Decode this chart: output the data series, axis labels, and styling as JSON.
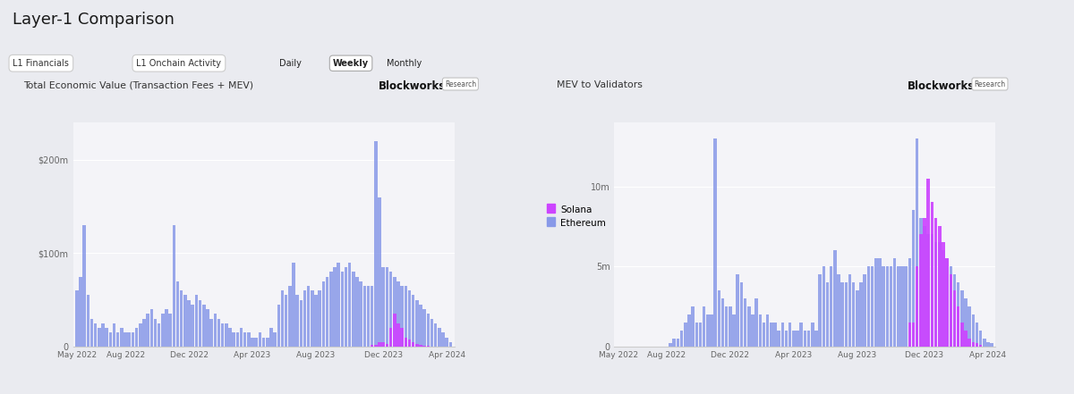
{
  "title": "Layer-1 Comparison",
  "subtitle_left": "L1 Financials",
  "subtitle_right": "L1 Onchain Activity",
  "active_tab": "Weekly",
  "chart1_title": "Total Economic Value (Transaction Fees + MEV)",
  "chart2_title": "MEV to Validators",
  "eth_color": "#8899e8",
  "sol_color": "#cc44ff",
  "bg_color": "#eaebf0",
  "panel_color": "#f4f4f8",
  "legend_solana": "Solana",
  "legend_ethereum": "Ethereum",
  "chart1_ytick_labels": [
    "0",
    "$100m",
    "$200m"
  ],
  "chart1_yticks": [
    0,
    100,
    200
  ],
  "chart1_ylim": 240,
  "chart2_ytick_labels": [
    "0",
    "5m",
    "10m"
  ],
  "chart2_yticks": [
    0,
    5,
    10
  ],
  "chart2_ylim": 14,
  "xtick_labels": [
    "May 2022",
    "Aug 2022",
    "Dec 2022",
    "Apr 2023",
    "Aug 2023",
    "Dec 2023",
    "Apr 2024"
  ],
  "xtick_positions": [
    0,
    13,
    30,
    47,
    64,
    82,
    99
  ],
  "eth_tev": [
    60,
    75,
    130,
    55,
    30,
    25,
    20,
    25,
    20,
    15,
    25,
    15,
    20,
    15,
    15,
    15,
    20,
    25,
    30,
    35,
    40,
    30,
    25,
    35,
    40,
    35,
    130,
    70,
    60,
    55,
    50,
    45,
    55,
    50,
    45,
    40,
    30,
    35,
    30,
    25,
    25,
    20,
    15,
    15,
    20,
    15,
    15,
    10,
    10,
    15,
    10,
    10,
    20,
    15,
    45,
    60,
    55,
    65,
    90,
    55,
    50,
    60,
    65,
    60,
    55,
    60,
    70,
    75,
    80,
    85,
    90,
    80,
    85,
    90,
    80,
    75,
    70,
    65,
    65,
    65,
    220,
    160,
    85,
    85,
    80,
    75,
    70,
    65,
    65,
    60,
    55,
    50,
    45,
    40,
    35,
    30,
    25,
    20,
    15,
    10,
    5
  ],
  "sol_tev": [
    0,
    0,
    0,
    0,
    0,
    0,
    0,
    0,
    0,
    0,
    0,
    0,
    0,
    0,
    0,
    0,
    0,
    0,
    0,
    0,
    0,
    0,
    0,
    0,
    0,
    0,
    0,
    0,
    0,
    0,
    0,
    0,
    0,
    0,
    0,
    0,
    0,
    0,
    0,
    0,
    0,
    0,
    0,
    0,
    0,
    0,
    0,
    0,
    0,
    0,
    0,
    0,
    0,
    0,
    0,
    0,
    0,
    0,
    0,
    0,
    0,
    0,
    0,
    0,
    0,
    0,
    0,
    0,
    0,
    0,
    0,
    0,
    0,
    0,
    0,
    0,
    0,
    0,
    0,
    2,
    2,
    5,
    5,
    3,
    20,
    35,
    25,
    20,
    10,
    8,
    5,
    3,
    2,
    1,
    1,
    0,
    0,
    0,
    0,
    0,
    0
  ],
  "eth_mev": [
    0,
    0,
    0,
    0,
    0,
    0,
    0,
    0,
    0,
    0,
    0,
    0,
    0,
    0,
    0.2,
    0.5,
    0.5,
    1.0,
    1.5,
    2.0,
    2.5,
    1.5,
    1.5,
    2.5,
    2.0,
    2.0,
    13,
    3.5,
    3.0,
    2.5,
    2.5,
    2.0,
    4.5,
    4.0,
    3.0,
    2.5,
    2.0,
    3.0,
    2.0,
    1.5,
    2.0,
    1.5,
    1.5,
    1.0,
    1.5,
    1.0,
    1.5,
    1.0,
    1.0,
    1.5,
    1.0,
    1.0,
    1.5,
    1.0,
    4.5,
    5.0,
    4.0,
    5.0,
    6.0,
    4.5,
    4.0,
    4.0,
    4.5,
    4.0,
    3.5,
    4.0,
    4.5,
    5.0,
    5.0,
    5.5,
    5.5,
    5.0,
    5.0,
    5.0,
    5.5,
    5.0,
    5.0,
    5.0,
    5.5,
    8.5,
    13,
    8.0,
    7.5,
    7.0,
    7.0,
    6.5,
    6.5,
    6.0,
    5.5,
    5.0,
    4.5,
    4.0,
    3.5,
    3.0,
    2.5,
    2.0,
    1.5,
    1.0,
    0.5,
    0.3,
    0.2
  ],
  "sol_mev": [
    0,
    0,
    0,
    0,
    0,
    0,
    0,
    0,
    0,
    0,
    0,
    0,
    0,
    0,
    0,
    0,
    0,
    0,
    0,
    0,
    0,
    0,
    0,
    0,
    0,
    0,
    0,
    0,
    0,
    0,
    0,
    0,
    0,
    0,
    0,
    0,
    0,
    0,
    0,
    0,
    0,
    0,
    0,
    0,
    0,
    0,
    0,
    0,
    0,
    0,
    0,
    0,
    0,
    0,
    0,
    0,
    0,
    0,
    0,
    0,
    0,
    0,
    0,
    0,
    0,
    0,
    0,
    0,
    0,
    0,
    0,
    0,
    0,
    0,
    0,
    0,
    0,
    0,
    1.5,
    1.5,
    5.0,
    7.0,
    8.0,
    10.5,
    9.0,
    8.0,
    7.5,
    6.5,
    5.5,
    4.5,
    3.5,
    2.5,
    1.5,
    1.0,
    0.5,
    0.3,
    0.2,
    0.1,
    0.0,
    0.0,
    0.0
  ]
}
